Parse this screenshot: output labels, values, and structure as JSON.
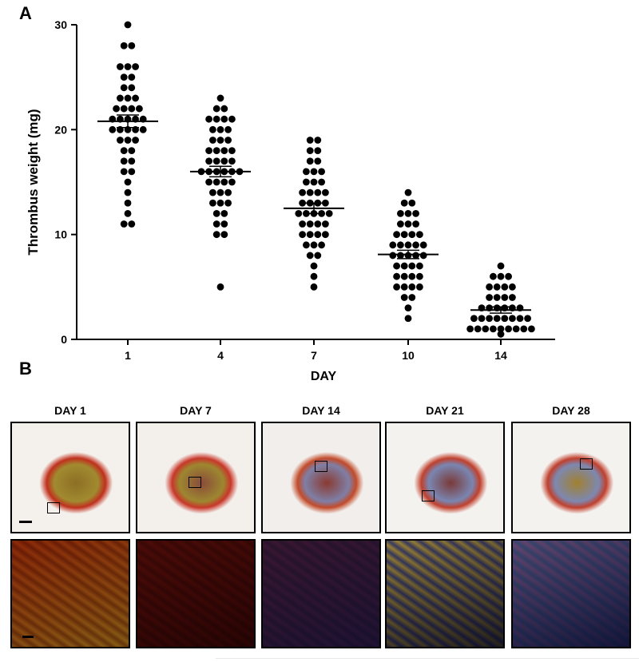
{
  "panel_labels": {
    "a": "A",
    "b": "B"
  },
  "chart_data": {
    "type": "scatter",
    "xlabel": "DAY",
    "ylabel": "Thrombus weight (mg)",
    "ylim": [
      0,
      30
    ],
    "yticks": [
      0,
      10,
      20,
      30
    ],
    "categories": [
      "1",
      "4",
      "7",
      "10",
      "14"
    ],
    "marker_color": "#000000",
    "groups": [
      {
        "day": "1",
        "mean": 20.8,
        "sem": 0.6,
        "values": [
          30,
          28,
          28,
          26,
          26,
          26,
          25,
          25,
          24,
          24,
          23,
          23,
          23,
          22,
          22,
          22,
          22,
          21,
          21,
          21,
          21,
          21,
          20,
          20,
          20,
          20,
          20,
          19,
          19,
          19,
          18,
          18,
          17,
          17,
          16,
          16,
          15,
          14,
          13,
          12,
          11,
          11
        ]
      },
      {
        "day": "4",
        "mean": 16.0,
        "sem": 0.5,
        "values": [
          23,
          22,
          22,
          21,
          21,
          21,
          21,
          20,
          20,
          20,
          19,
          19,
          19,
          18,
          18,
          18,
          18,
          17,
          17,
          17,
          17,
          16,
          16,
          16,
          16,
          16,
          16,
          15,
          15,
          15,
          15,
          14,
          14,
          14,
          13,
          13,
          13,
          12,
          12,
          11,
          11,
          10,
          10,
          5
        ]
      },
      {
        "day": "7",
        "mean": 12.5,
        "sem": 0.5,
        "values": [
          19,
          19,
          18,
          18,
          17,
          17,
          16,
          16,
          16,
          15,
          15,
          15,
          14,
          14,
          14,
          14,
          13,
          13,
          13,
          13,
          12,
          12,
          12,
          12,
          12,
          11,
          11,
          11,
          11,
          10,
          10,
          10,
          10,
          9,
          9,
          9,
          8,
          8,
          7,
          6,
          5
        ]
      },
      {
        "day": "10",
        "mean": 8.1,
        "sem": 0.4,
        "values": [
          14,
          13,
          13,
          12,
          12,
          12,
          11,
          11,
          11,
          10,
          10,
          10,
          10,
          9,
          9,
          9,
          9,
          9,
          8,
          8,
          8,
          8,
          8,
          7,
          7,
          7,
          7,
          6,
          6,
          6,
          6,
          5,
          5,
          5,
          5,
          4,
          4,
          3,
          2
        ]
      },
      {
        "day": "14",
        "mean": 2.8,
        "sem": 0.3,
        "values": [
          7,
          6,
          6,
          6,
          5,
          5,
          5,
          5,
          4,
          4,
          4,
          4,
          3,
          3,
          3,
          3,
          3,
          3,
          2,
          2,
          2,
          2,
          2,
          2,
          2,
          2,
          1,
          1,
          1,
          1,
          1,
          1,
          1,
          1,
          1,
          0.5
        ]
      }
    ]
  },
  "histology": {
    "columns": [
      {
        "title": "DAY 1",
        "top_colors": [
          "#f4f1ec",
          "#a18a30",
          "#8d6f24",
          "#c0301d"
        ],
        "bottom_colors": [
          "#b99a48",
          "#8a5a28",
          "#c2461f"
        ]
      },
      {
        "title": "DAY 7",
        "top_colors": [
          "#f3f0ec",
          "#9d8730",
          "#8a4b3a",
          "#c8372a"
        ],
        "bottom_colors": [
          "#5a1e1e",
          "#7a2a23",
          "#a44a3a"
        ]
      },
      {
        "title": "DAY 14",
        "top_colors": [
          "#f1eeeb",
          "#7f7fa6",
          "#8a3a30",
          "#c24b2a"
        ],
        "bottom_colors": [
          "#4c3f6a",
          "#6d4a7a",
          "#8a5068"
        ]
      },
      {
        "title": "DAY 21",
        "top_colors": [
          "#f4f2ef",
          "#7a86b2",
          "#7a3a38",
          "#c0402d"
        ],
        "bottom_colors": [
          "#3c3f6a",
          "#a58b3a",
          "#f2f0ea"
        ]
      },
      {
        "title": "DAY 28",
        "top_colors": [
          "#f4f2ef",
          "#7e88b0",
          "#a08030",
          "#c0402d"
        ],
        "bottom_colors": [
          "#3a4a78",
          "#6a4a7a",
          "#f2efe8"
        ]
      }
    ]
  }
}
